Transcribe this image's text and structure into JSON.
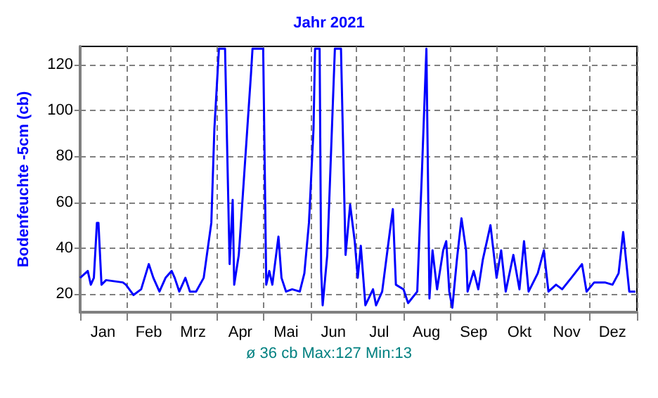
{
  "chart_data": {
    "type": "line",
    "title": "Jahr 2021",
    "ylabel": "Bodenfeuchte -5cm (cb)",
    "annotations": [
      "ø 36 cb Max:127 Min:13"
    ],
    "xlim": [
      "2021-01-01",
      "2022-01-01"
    ],
    "ylim": [
      12,
      128
    ],
    "yticks": [
      20,
      40,
      60,
      80,
      100,
      120
    ],
    "xticks": [
      {
        "value": "2021-01-01",
        "label": null
      },
      {
        "value": "2021-01-16",
        "label": "Jan"
      },
      {
        "value": "2021-02-01",
        "label": null
      },
      {
        "value": "2021-02-15",
        "label": "Feb"
      },
      {
        "value": "2021-03-01",
        "label": null
      },
      {
        "value": "2021-03-16",
        "label": "Mrz"
      },
      {
        "value": "2021-04-01",
        "label": null
      },
      {
        "value": "2021-04-16",
        "label": "Apr"
      },
      {
        "value": "2021-05-01",
        "label": null
      },
      {
        "value": "2021-05-16",
        "label": "Mai"
      },
      {
        "value": "2021-06-01",
        "label": null
      },
      {
        "value": "2021-06-16",
        "label": "Jun"
      },
      {
        "value": "2021-07-01",
        "label": null
      },
      {
        "value": "2021-07-16",
        "label": "Jul"
      },
      {
        "value": "2021-08-01",
        "label": null
      },
      {
        "value": "2021-08-16",
        "label": "Aug"
      },
      {
        "value": "2021-09-01",
        "label": null
      },
      {
        "value": "2021-09-16",
        "label": "Sep"
      },
      {
        "value": "2021-10-01",
        "label": null
      },
      {
        "value": "2021-10-16",
        "label": "Okt"
      },
      {
        "value": "2021-11-01",
        "label": null
      },
      {
        "value": "2021-11-16",
        "label": "Nov"
      },
      {
        "value": "2021-12-01",
        "label": null
      },
      {
        "value": "2021-12-16",
        "label": "Dez"
      },
      {
        "value": "2022-01-01",
        "label": null
      }
    ],
    "grid": true,
    "series": [
      {
        "color": "#0000ff",
        "x": [
          "2021-01-01",
          "2021-01-06",
          "2021-01-08",
          "2021-01-10",
          "2021-01-12",
          "2021-01-13",
          "2021-01-15",
          "2021-01-18",
          "2021-01-29",
          "2021-01-31",
          "2021-02-05",
          "2021-02-10",
          "2021-02-15",
          "2021-02-18",
          "2021-02-22",
          "2021-02-26",
          "2021-03-02",
          "2021-03-04",
          "2021-03-07",
          "2021-03-11",
          "2021-03-14",
          "2021-03-18",
          "2021-03-23",
          "2021-03-28",
          "2021-03-30",
          "2021-04-02",
          "2021-04-06",
          "2021-04-09",
          "2021-04-11",
          "2021-04-12",
          "2021-04-15",
          "2021-04-23",
          "2021-04-24",
          "2021-05-01",
          "2021-05-02",
          "2021-05-03",
          "2021-05-05",
          "2021-05-07",
          "2021-05-11",
          "2021-05-13",
          "2021-05-16",
          "2021-05-20",
          "2021-05-25",
          "2021-05-28",
          "2021-05-31",
          "2021-06-03",
          "2021-06-04",
          "2021-06-07",
          "2021-06-08",
          "2021-06-09",
          "2021-06-12",
          "2021-06-17",
          "2021-06-21",
          "2021-06-24",
          "2021-06-27",
          "2021-06-30",
          "2021-07-02",
          "2021-07-04",
          "2021-07-07",
          "2021-07-12",
          "2021-07-14",
          "2021-07-18",
          "2021-07-23",
          "2021-07-25",
          "2021-07-27",
          "2021-08-01",
          "2021-08-04",
          "2021-08-10",
          "2021-08-13",
          "2021-08-16",
          "2021-08-18",
          "2021-08-20",
          "2021-08-23",
          "2021-08-27",
          "2021-08-29",
          "2021-08-31",
          "2021-09-02",
          "2021-09-05",
          "2021-09-08",
          "2021-09-11",
          "2021-09-12",
          "2021-09-16",
          "2021-09-19",
          "2021-09-22",
          "2021-09-27",
          "2021-10-01",
          "2021-10-04",
          "2021-10-07",
          "2021-10-12",
          "2021-10-16",
          "2021-10-19",
          "2021-10-22",
          "2021-10-28",
          "2021-11-01",
          "2021-11-04",
          "2021-11-09",
          "2021-11-13",
          "2021-11-19",
          "2021-11-26",
          "2021-11-29",
          "2021-12-04",
          "2021-12-11",
          "2021-12-16",
          "2021-12-20",
          "2021-12-23",
          "2021-12-27",
          "2021-12-31"
        ],
        "values": [
          27,
          30,
          24,
          27,
          51,
          51,
          24,
          26,
          25,
          24,
          19.5,
          22,
          33,
          27,
          21,
          27,
          30,
          27,
          21,
          27,
          21,
          21,
          27,
          51,
          92,
          127,
          127,
          33,
          61,
          24,
          37,
          116,
          127,
          127,
          76,
          24,
          30,
          24,
          45,
          27,
          21,
          22,
          21,
          29,
          51,
          92,
          127,
          127,
          30,
          15,
          37,
          127,
          127,
          37,
          59,
          43,
          27,
          41,
          15,
          22,
          15,
          21,
          47,
          57,
          24,
          22,
          16,
          21,
          72,
          127,
          18,
          39,
          22,
          39,
          43,
          21,
          14,
          35,
          53,
          39,
          21,
          30,
          22,
          35,
          50,
          27,
          39,
          21,
          37,
          22,
          43,
          21,
          29,
          39,
          21,
          24,
          22,
          27,
          33,
          21,
          25,
          25,
          24,
          29,
          47,
          21,
          21
        ]
      }
    ]
  }
}
